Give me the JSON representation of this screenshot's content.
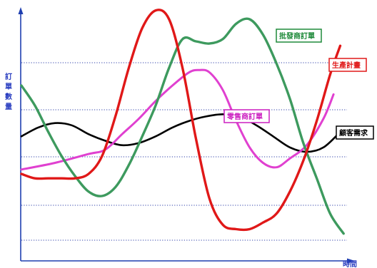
{
  "chart_data": {
    "type": "line",
    "title": "",
    "xlabel": "時間",
    "ylabel": "訂單數量",
    "xlim": [
      0,
      100
    ],
    "ylim": [
      0,
      100
    ],
    "x_ticks": [],
    "y_ticks": [],
    "grid": "horizontal dotted lines",
    "legend": "inline boxed labels next to each curve",
    "series": [
      {
        "name": "顧客需求",
        "color": "#000000",
        "label_color": "#000000",
        "x": [
          0,
          5,
          10,
          15,
          20,
          25,
          30,
          35,
          40,
          45,
          50,
          55,
          60,
          65,
          70,
          75,
          80,
          85,
          90,
          95
        ],
        "y": [
          47,
          51,
          53,
          52,
          48,
          45,
          43,
          44,
          47,
          51,
          54,
          56,
          57,
          56,
          52,
          47,
          42,
          40,
          42,
          49
        ]
      },
      {
        "name": "零售商訂單",
        "color": "#e040d0",
        "label_color": "#cc1fc0",
        "x": [
          0,
          10,
          20,
          25,
          30,
          35,
          40,
          45,
          50,
          53,
          56,
          60,
          64,
          68,
          72,
          76,
          80,
          85,
          90,
          93
        ],
        "y": [
          32,
          35,
          39,
          41,
          48,
          55,
          63,
          70,
          76,
          77,
          76,
          68,
          54,
          42,
          35,
          33,
          37,
          43,
          55,
          66
        ]
      },
      {
        "name": "批發商訂單",
        "color": "#3d9a5e",
        "label_color": "#1f8a3a",
        "x": [
          0,
          4,
          8,
          12,
          16,
          20,
          24,
          28,
          32,
          36,
          40,
          44,
          48,
          52,
          56,
          60,
          64,
          68,
          72,
          76,
          80,
          84,
          88,
          92,
          96
        ],
        "y": [
          70,
          61,
          49,
          38,
          29,
          22,
          20,
          24,
          34,
          47,
          61,
          78,
          91,
          90,
          89,
          91,
          98,
          100,
          93,
          80,
          64,
          44,
          28,
          12,
          3
        ]
      },
      {
        "name": "生產計畫",
        "color": "#e01818",
        "label_color": "#e01818",
        "x": [
          0,
          4,
          8,
          12,
          16,
          20,
          24,
          28,
          32,
          36,
          40,
          44,
          48,
          52,
          56,
          60,
          64,
          68,
          72,
          76,
          80,
          84,
          88,
          92,
          95
        ],
        "y": [
          30,
          28,
          28,
          28,
          28,
          30,
          38,
          56,
          78,
          96,
          104,
          100,
          78,
          46,
          19,
          7,
          5,
          5,
          8,
          12,
          22,
          36,
          54,
          75,
          88
        ]
      }
    ]
  }
}
